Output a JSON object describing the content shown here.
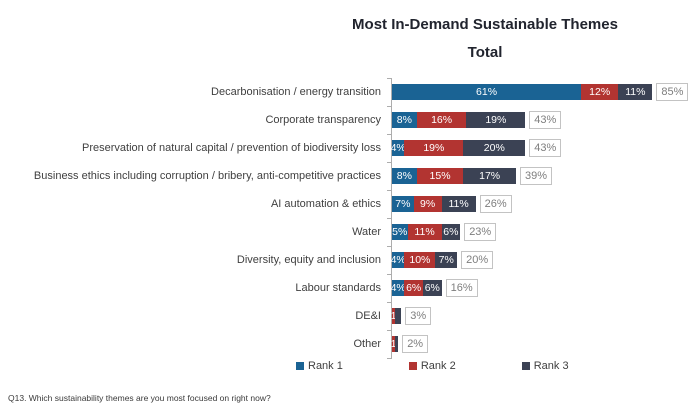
{
  "title": "Most In-Demand Sustainable Themes",
  "subtitle": "Total",
  "footer": "Q13. Which sustainability themes are you most focused on right now?",
  "colors": {
    "rank1": "#1a6394",
    "rank2": "#b23431",
    "rank3": "#3b4254",
    "axis": "#adadad",
    "total_box_border": "#c3c3c3",
    "total_box_text": "#7e7e7e",
    "category_text": "#3f3f3f"
  },
  "legend": [
    {
      "label": "Rank 1",
      "color_key": "rank1"
    },
    {
      "label": "Rank 2",
      "color_key": "rank2"
    },
    {
      "label": "Rank 3",
      "color_key": "rank3"
    }
  ],
  "chart_data": {
    "type": "bar",
    "orientation": "horizontal",
    "stacked": true,
    "title": "Most In-Demand Sustainable Themes",
    "subtitle": "Total",
    "xlim": [
      0,
      100
    ],
    "grid": false,
    "legend_position": "bottom",
    "categories": [
      "Decarbonisation / energy transition",
      "Corporate transparency",
      "Preservation of natural capital / prevention of biodiversity loss",
      "Business ethics including corruption / bribery, anti-competitive practices",
      "AI automation & ethics",
      "Water",
      "Diversity, equity and inclusion",
      "Labour standards",
      "DE&I",
      "Other"
    ],
    "series": [
      {
        "name": "Rank 1",
        "values": [
          61,
          8,
          4,
          8,
          7,
          5,
          4,
          4,
          0,
          0
        ]
      },
      {
        "name": "Rank 2",
        "values": [
          12,
          16,
          19,
          15,
          9,
          11,
          10,
          6,
          1,
          1
        ]
      },
      {
        "name": "Rank 3",
        "values": [
          11,
          19,
          20,
          17,
          11,
          6,
          7,
          6,
          2,
          1
        ]
      }
    ],
    "segment_labels": [
      [
        "61%",
        "12%",
        "11%"
      ],
      [
        "8%",
        "16%",
        "19%"
      ],
      [
        "4%",
        "19%",
        "20%"
      ],
      [
        "8%",
        "15%",
        "17%"
      ],
      [
        "7%",
        "9%",
        "11%"
      ],
      [
        "5%",
        "11%",
        "6%"
      ],
      [
        "4%",
        "10%",
        "7%"
      ],
      [
        "4%",
        "6%",
        "6%"
      ],
      [
        "",
        "1",
        ""
      ],
      [
        "",
        "1",
        ""
      ]
    ],
    "totals": [
      "85%",
      "43%",
      "43%",
      "39%",
      "26%",
      "23%",
      "20%",
      "16%",
      "3%",
      "2%"
    ]
  }
}
